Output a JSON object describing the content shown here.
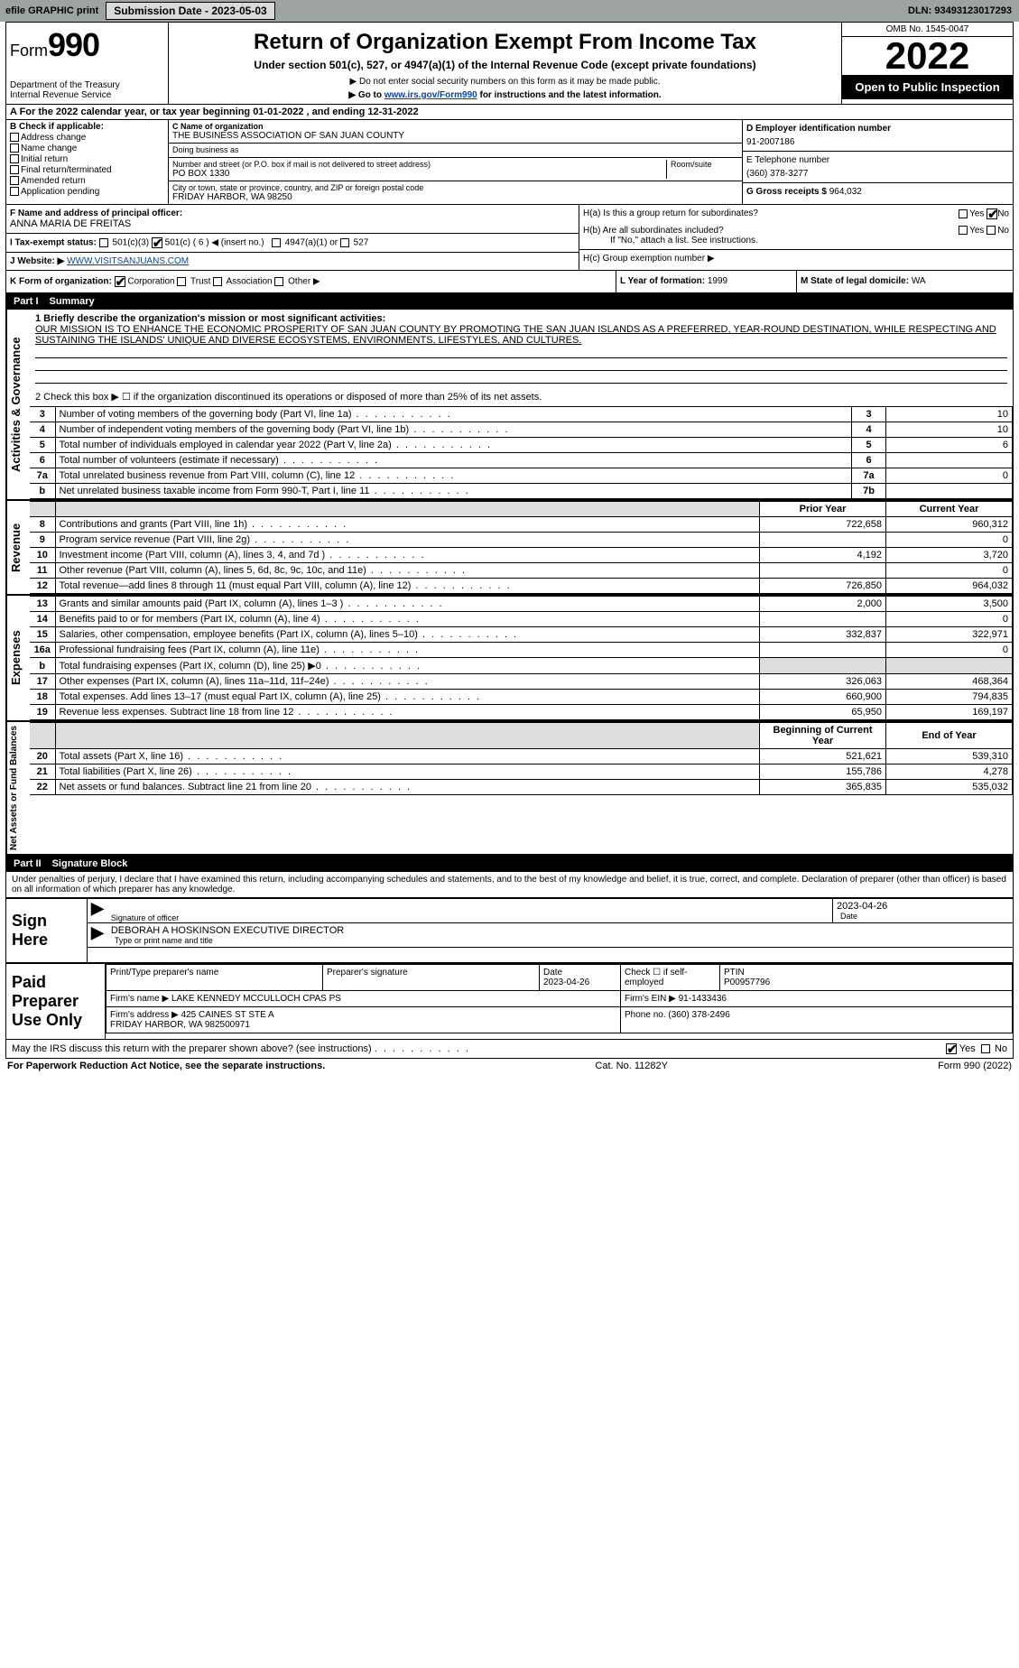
{
  "topbar": {
    "efile": "efile GRAPHIC print",
    "submission_label": "Submission Date - 2023-05-03",
    "dln_label": "DLN: 93493123017293"
  },
  "header": {
    "form_prefix": "Form",
    "form_number": "990",
    "dept": "Department of the Treasury\nInternal Revenue Service",
    "title": "Return of Organization Exempt From Income Tax",
    "subtitle": "Under section 501(c), 527, or 4947(a)(1) of the Internal Revenue Code (except private foundations)",
    "note1": "▶ Do not enter social security numbers on this form as it may be made public.",
    "note2_pre": "▶ Go to ",
    "note2_link": "www.irs.gov/Form990",
    "note2_post": " for instructions and the latest information.",
    "omb": "OMB No. 1545-0047",
    "year": "2022",
    "open_public": "Open to Public Inspection"
  },
  "section_a": {
    "line": "A For the 2022 calendar year, or tax year beginning 01-01-2022    , and ending 12-31-2022"
  },
  "section_b": {
    "heading": "B Check if applicable:",
    "items": [
      "Address change",
      "Name change",
      "Initial return",
      "Final return/terminated",
      "Amended return",
      "Application pending"
    ]
  },
  "section_c": {
    "name_label": "C Name of organization",
    "name": "THE BUSINESS ASSOCIATION OF SAN JUAN COUNTY",
    "dba_label": "Doing business as",
    "dba": "",
    "addr_label": "Number and street (or P.O. box if mail is not delivered to street address)",
    "room_label": "Room/suite",
    "addr": "PO BOX 1330",
    "city_label": "City or town, state or province, country, and ZIP or foreign postal code",
    "city": "FRIDAY HARBOR, WA  98250"
  },
  "section_d": {
    "label": "D Employer identification number",
    "value": "91-2007186"
  },
  "section_e": {
    "label": "E Telephone number",
    "value": "(360) 378-3277"
  },
  "section_g": {
    "label": "G Gross receipts $",
    "value": "964,032"
  },
  "section_f": {
    "label": "F Name and address of principal officer:",
    "value": "ANNA MARIA DE FREITAS"
  },
  "section_h": {
    "a": "H(a)  Is this a group return for subordinates?",
    "b": "H(b)  Are all subordinates included?",
    "b_note": "If \"No,\" attach a list. See instructions.",
    "c": "H(c)  Group exemption number ▶",
    "yes": "Yes",
    "no": "No"
  },
  "section_i": {
    "label": "I   Tax-exempt status:",
    "opt1": "501(c)(3)",
    "opt2_pre": "501(c) ( ",
    "opt2_num": "6",
    "opt2_post": " ) ◀ (insert no.)",
    "opt3": "4947(a)(1) or",
    "opt4": "527"
  },
  "section_j": {
    "label": "J   Website: ▶",
    "value": "WWW.VISITSANJUANS.COM"
  },
  "section_k": {
    "label": "K Form of organization:",
    "opts": [
      "Corporation",
      "Trust",
      "Association",
      "Other ▶"
    ]
  },
  "section_l": {
    "label": "L Year of formation:",
    "value": "1999"
  },
  "section_m": {
    "label": "M State of legal domicile:",
    "value": "WA"
  },
  "part1": {
    "bar": "Part I",
    "title": "Summary"
  },
  "summary": {
    "line1_label": "1  Briefly describe the organization's mission or most significant activities:",
    "mission": "OUR MISSION IS TO ENHANCE THE ECONOMIC PROSPERITY OF SAN JUAN COUNTY BY PROMOTING THE SAN JUAN ISLANDS AS A PREFERRED, YEAR-ROUND DESTINATION, WHILE RESPECTING AND SUSTAINING THE ISLANDS' UNIQUE AND DIVERSE ECOSYSTEMS, ENVIRONMENTS, LIFESTYLES, AND CULTURES.",
    "line2": "2   Check this box ▶ ☐  if the organization discontinued its operations or disposed of more than 25% of its net assets.",
    "rows_ag": [
      {
        "n": "3",
        "t": "Number of voting members of the governing body (Part VI, line 1a)",
        "vn": "3",
        "v": "10"
      },
      {
        "n": "4",
        "t": "Number of independent voting members of the governing body (Part VI, line 1b)",
        "vn": "4",
        "v": "10"
      },
      {
        "n": "5",
        "t": "Total number of individuals employed in calendar year 2022 (Part V, line 2a)",
        "vn": "5",
        "v": "6"
      },
      {
        "n": "6",
        "t": "Total number of volunteers (estimate if necessary)",
        "vn": "6",
        "v": ""
      },
      {
        "n": "7a",
        "t": "Total unrelated business revenue from Part VIII, column (C), line 12",
        "vn": "7a",
        "v": "0"
      },
      {
        "n": "b",
        "t": "Net unrelated business taxable income from Form 990-T, Part I, line 11",
        "vn": "7b",
        "v": ""
      }
    ],
    "col_prior": "Prior Year",
    "col_current": "Current Year",
    "rows_rev": [
      {
        "n": "8",
        "t": "Contributions and grants (Part VIII, line 1h)",
        "p": "722,658",
        "c": "960,312"
      },
      {
        "n": "9",
        "t": "Program service revenue (Part VIII, line 2g)",
        "p": "",
        "c": "0"
      },
      {
        "n": "10",
        "t": "Investment income (Part VIII, column (A), lines 3, 4, and 7d )",
        "p": "4,192",
        "c": "3,720"
      },
      {
        "n": "11",
        "t": "Other revenue (Part VIII, column (A), lines 5, 6d, 8c, 9c, 10c, and 11e)",
        "p": "",
        "c": "0"
      },
      {
        "n": "12",
        "t": "Total revenue—add lines 8 through 11 (must equal Part VIII, column (A), line 12)",
        "p": "726,850",
        "c": "964,032"
      }
    ],
    "rows_exp": [
      {
        "n": "13",
        "t": "Grants and similar amounts paid (Part IX, column (A), lines 1–3 )",
        "p": "2,000",
        "c": "3,500"
      },
      {
        "n": "14",
        "t": "Benefits paid to or for members (Part IX, column (A), line 4)",
        "p": "",
        "c": "0"
      },
      {
        "n": "15",
        "t": "Salaries, other compensation, employee benefits (Part IX, column (A), lines 5–10)",
        "p": "332,837",
        "c": "322,971"
      },
      {
        "n": "16a",
        "t": "Professional fundraising fees (Part IX, column (A), line 11e)",
        "p": "",
        "c": "0"
      },
      {
        "n": "b",
        "t": "Total fundraising expenses (Part IX, column (D), line 25) ▶0",
        "p": "GREY",
        "c": "GREY"
      },
      {
        "n": "17",
        "t": "Other expenses (Part IX, column (A), lines 11a–11d, 11f–24e)",
        "p": "326,063",
        "c": "468,364"
      },
      {
        "n": "18",
        "t": "Total expenses. Add lines 13–17 (must equal Part IX, column (A), line 25)",
        "p": "660,900",
        "c": "794,835"
      },
      {
        "n": "19",
        "t": "Revenue less expenses. Subtract line 18 from line 12",
        "p": "65,950",
        "c": "169,197"
      }
    ],
    "col_begin": "Beginning of Current Year",
    "col_end": "End of Year",
    "rows_net": [
      {
        "n": "20",
        "t": "Total assets (Part X, line 16)",
        "p": "521,621",
        "c": "539,310"
      },
      {
        "n": "21",
        "t": "Total liabilities (Part X, line 26)",
        "p": "155,786",
        "c": "4,278"
      },
      {
        "n": "22",
        "t": "Net assets or fund balances. Subtract line 21 from line 20",
        "p": "365,835",
        "c": "535,032"
      }
    ],
    "side_ag": "Activities & Governance",
    "side_rev": "Revenue",
    "side_exp": "Expenses",
    "side_net": "Net Assets or Fund Balances"
  },
  "part2": {
    "bar": "Part II",
    "title": "Signature Block"
  },
  "sig": {
    "penalty": "Under penalties of perjury, I declare that I have examined this return, including accompanying schedules and statements, and to the best of my knowledge and belief, it is true, correct, and complete. Declaration of preparer (other than officer) is based on all information of which preparer has any knowledge.",
    "sign_here": "Sign Here",
    "sig_officer": "Signature of officer",
    "date": "Date",
    "date_val": "2023-04-26",
    "name_title": "DEBORAH A HOSKINSON  EXECUTIVE DIRECTOR",
    "type_name": "Type or print name and title"
  },
  "prep": {
    "label": "Paid Preparer Use Only",
    "h1": "Print/Type preparer's name",
    "h2": "Preparer's signature",
    "h3": "Date",
    "h4": "Check ☐ if self-employed",
    "h5": "PTIN",
    "date": "2023-04-26",
    "ptin": "P00957796",
    "firm_label": "Firm's name    ▶",
    "firm": "LAKE KENNEDY MCCULLOCH CPAS PS",
    "ein_label": "Firm's EIN ▶",
    "ein": "91-1433436",
    "addr_label": "Firm's address ▶",
    "addr": "425 CAINES ST STE A\nFRIDAY HARBOR, WA  982500971",
    "phone_label": "Phone no.",
    "phone": "(360) 378-2496"
  },
  "discuss": {
    "text": "May the IRS discuss this return with the preparer shown above? (see instructions)",
    "yes": "Yes",
    "no": "No"
  },
  "footer": {
    "left": "For Paperwork Reduction Act Notice, see the separate instructions.",
    "mid": "Cat. No. 11282Y",
    "right": "Form 990 (2022)"
  }
}
